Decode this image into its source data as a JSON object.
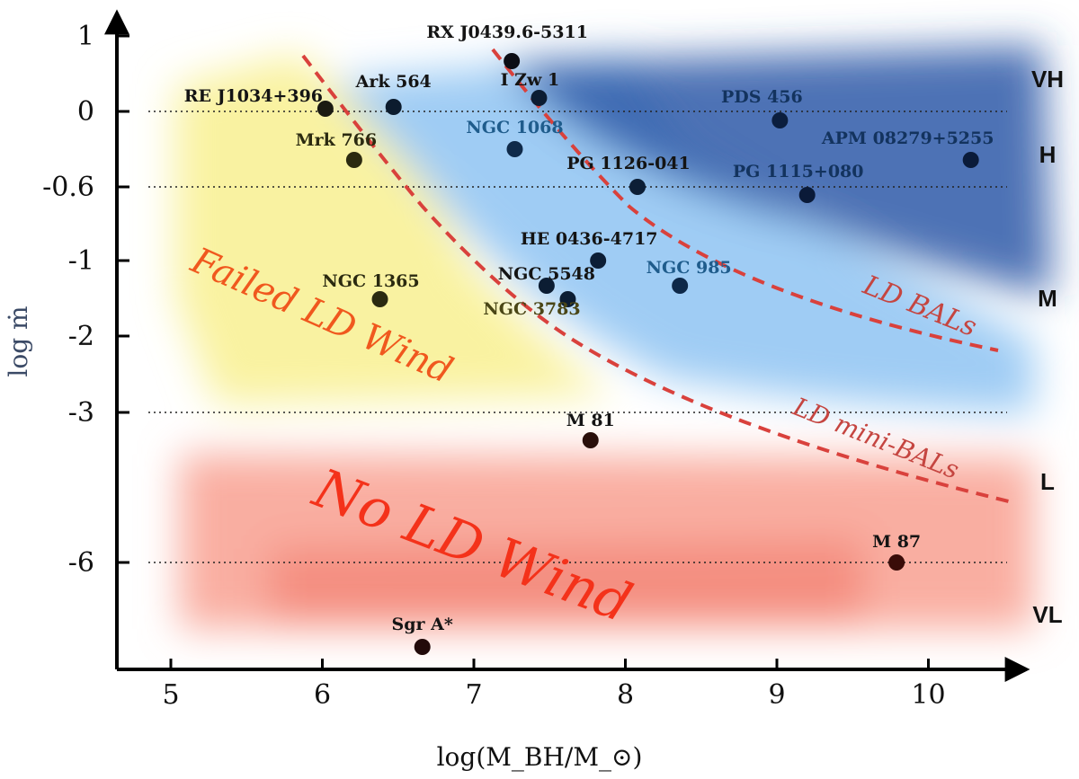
{
  "chart_data": {
    "type": "scatter",
    "xlabel": "log(M_BH/M_⊙)",
    "ylabel": "log ṁ",
    "x_ticks": [
      "5",
      "6",
      "7",
      "8",
      "9",
      "10"
    ],
    "y_ticks": [
      "1",
      "0",
      "-0.6",
      "-1",
      "-2",
      "-3",
      "-6"
    ],
    "xlim": [
      4.65,
      10.6
    ],
    "grid_levels": [
      "0",
      "-0.6",
      "-3",
      "-6"
    ],
    "band_labels": [
      "VH",
      "H",
      "M",
      "L",
      "VL"
    ],
    "region_labels": {
      "failed": "Failed LD Wind",
      "none": "No LD Wind",
      "bals": "LD BALs",
      "minibals": "LD mini-BALs"
    },
    "points": [
      {
        "name": "RE J1034+396",
        "x": 6.02,
        "y": "0.03",
        "color": "#1a1a12"
      },
      {
        "name": "Ark 564",
        "x": 6.47,
        "y": "0.04",
        "color": "#0c1c2e"
      },
      {
        "name": "Mrk 766",
        "x": 6.21,
        "y": "-0.4",
        "color": "#2b2a10"
      },
      {
        "name": "RX J0439.6-5311",
        "x": 7.25,
        "y": "0.7",
        "color": "#0b0d15"
      },
      {
        "name": "I Zw 1",
        "x": 7.43,
        "y": "0.2",
        "color": "#0c1d33"
      },
      {
        "name": "NGC 1068",
        "x": 7.27,
        "y": "-0.3",
        "color": "#0f2a4a"
      },
      {
        "name": "PG 1126-041",
        "x": 8.08,
        "y": "-0.6",
        "color": "#0c1e36"
      },
      {
        "name": "PDS 456",
        "x": 9.02,
        "y": "-0.1",
        "color": "#0b1e3e"
      },
      {
        "name": "APM 08279+5255",
        "x": 10.28,
        "y": "-0.4",
        "color": "#0a1b3a"
      },
      {
        "name": "PG 1115+080",
        "x": 9.2,
        "y": "-0.65",
        "color": "#0a1a38"
      },
      {
        "name": "HE 0436-4717",
        "x": 7.82,
        "y": "-1",
        "color": "#0c1e36"
      },
      {
        "name": "NGC 985",
        "x": 8.36,
        "y": "-1.3",
        "color": "#0e2848"
      },
      {
        "name": "NGC 5548",
        "x": 7.48,
        "y": "-1.3",
        "color": "#0c1d33"
      },
      {
        "name": "NGC 3783",
        "x": 7.62,
        "y": "-1.5",
        "color": "#0c1d33"
      },
      {
        "name": "NGC 1365",
        "x": 6.38,
        "y": "-1.5",
        "color": "#2b2a10"
      },
      {
        "name": "M 81",
        "x": 7.77,
        "y": "-3.5",
        "color": "#2a0f0a"
      },
      {
        "name": "M 87",
        "x": 9.79,
        "y": "-6",
        "color": "#3a0c08"
      },
      {
        "name": "Sgr A*",
        "x": 6.66,
        "y": "-8",
        "color": "#220a0a"
      }
    ]
  }
}
